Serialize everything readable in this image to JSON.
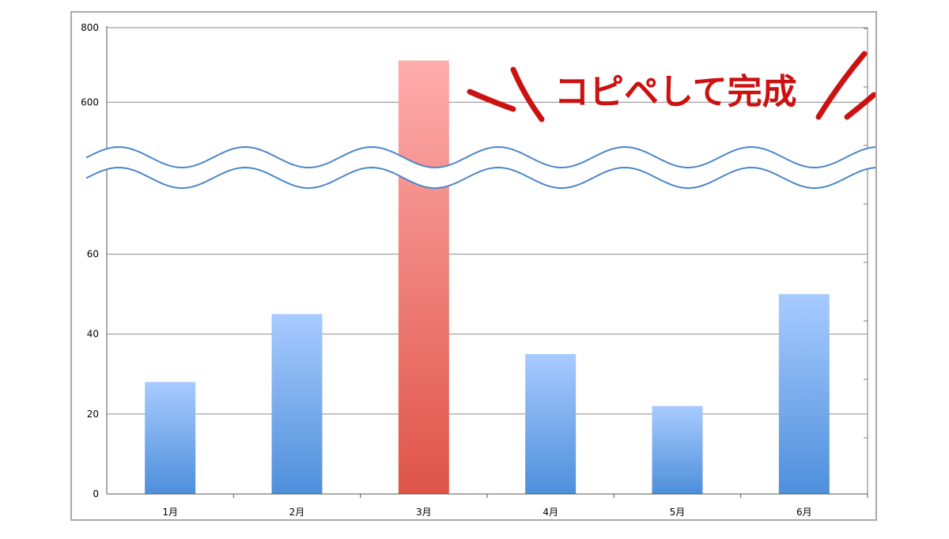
{
  "chart_data": {
    "type": "bar",
    "categories": [
      "1月",
      "2月",
      "3月",
      "4月",
      "5月",
      "6月"
    ],
    "values": [
      28,
      45,
      712,
      35,
      22,
      50
    ],
    "y_ticks_lower": [
      "0",
      "20",
      "40",
      "60"
    ],
    "y_ticks_upper": [
      "600",
      "800"
    ],
    "axis_break": {
      "lower_top": 70,
      "upper_bottom": 550
    },
    "ylim": [
      0,
      800
    ],
    "grid": true,
    "highlight_category": "3月",
    "annotation": "コピペして完成",
    "colors": {
      "bar_top": "#a8cbff",
      "bar_bottom": "#4e8fdb",
      "highlight_top": "#ffacac",
      "highlight_bottom": "#de5448",
      "break_line": "#4a86c8",
      "annotation": "#cc1111"
    }
  }
}
